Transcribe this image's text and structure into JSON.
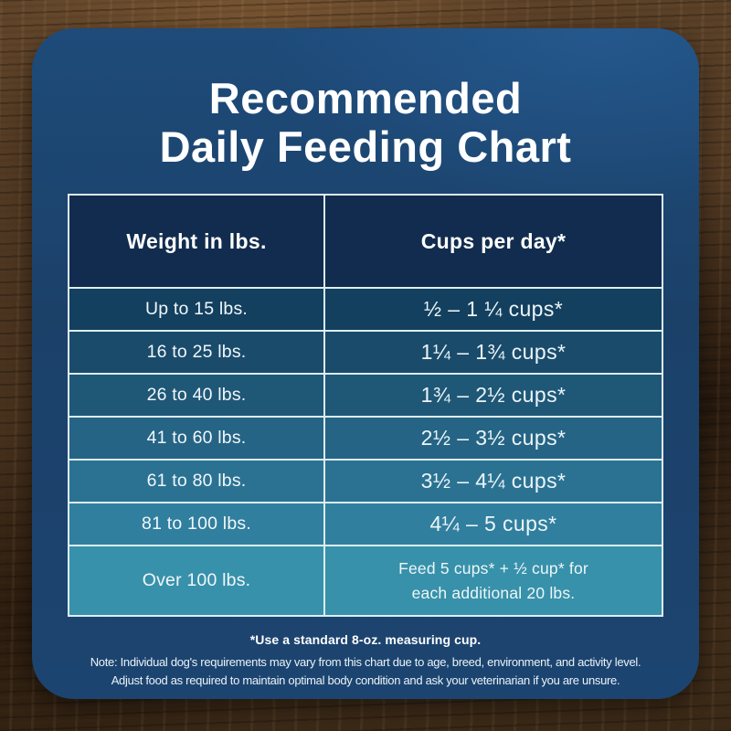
{
  "title": {
    "line1": "Recommended",
    "line2": "Daily Feeding Chart"
  },
  "table": {
    "headers": [
      "Weight in lbs.",
      "Cups per day*"
    ],
    "rows": [
      {
        "weight": "Up to 15 lbs.",
        "cups": "½ – 1 ¼ cups*"
      },
      {
        "weight": "16 to 25 lbs.",
        "cups": "1¼ – 1¾ cups*"
      },
      {
        "weight": "26 to 40 lbs.",
        "cups": "1¾ – 2½ cups*"
      },
      {
        "weight": "41 to 60 lbs.",
        "cups": "2½ – 3½ cups*"
      },
      {
        "weight": "61 to 80 lbs.",
        "cups": "3½ – 4¼ cups*"
      },
      {
        "weight": "81 to 100 lbs.",
        "cups": "4¼ – 5 cups*"
      },
      {
        "weight": "Over 100 lbs.",
        "cups_line1": "Feed 5 cups* + ½ cup* for",
        "cups_line2": "each additional 20 lbs."
      }
    ],
    "row_colors": [
      "#14405f",
      "#1a4b6b",
      "#1f5777",
      "#256485",
      "#2b7292",
      "#317f9e",
      "#3891aa"
    ]
  },
  "footnotes": {
    "measuring_cup": "*Use a standard 8-oz. measuring cup.",
    "note_line1": "Note: Individual dog's requirements may vary from this chart due to age, breed, environment, and activity level.",
    "note_line2": "Adjust food as required to maintain optimal body condition and ask your veterinarian if you are unsure."
  },
  "colors": {
    "panel": "#1b4169",
    "panel-highlight": "#1e4b7a",
    "header-cell": "#112c4e",
    "table-border": "#ddeef3",
    "wood-base": "#4a3420",
    "wood-dark": "#3a2917",
    "wood-light": "#5b4128"
  },
  "chart_data": {
    "type": "table",
    "title": "Recommended Daily Feeding Chart",
    "columns": [
      "Weight in lbs.",
      "Cups per day*"
    ],
    "rows": [
      [
        "Up to 15 lbs.",
        "½ – 1 ¼ cups*"
      ],
      [
        "16 to 25 lbs.",
        "1¼ – 1¾ cups*"
      ],
      [
        "26 to 40 lbs.",
        "1¾ – 2½ cups*"
      ],
      [
        "41 to 60 lbs.",
        "2½ – 3½ cups*"
      ],
      [
        "61 to 80 lbs.",
        "3½ – 4¼ cups*"
      ],
      [
        "81 to 100 lbs.",
        "4¼ – 5 cups*"
      ],
      [
        "Over 100 lbs.",
        "Feed 5 cups* + ½ cup* for each additional 20 lbs."
      ]
    ],
    "notes": [
      "*Use a standard 8-oz. measuring cup.",
      "Note: Individual dog's requirements may vary from this chart due to age, breed, environment, and activity level.",
      "Adjust food as required to maintain optimal body condition and ask your veterinarian if you are unsure."
    ]
  }
}
